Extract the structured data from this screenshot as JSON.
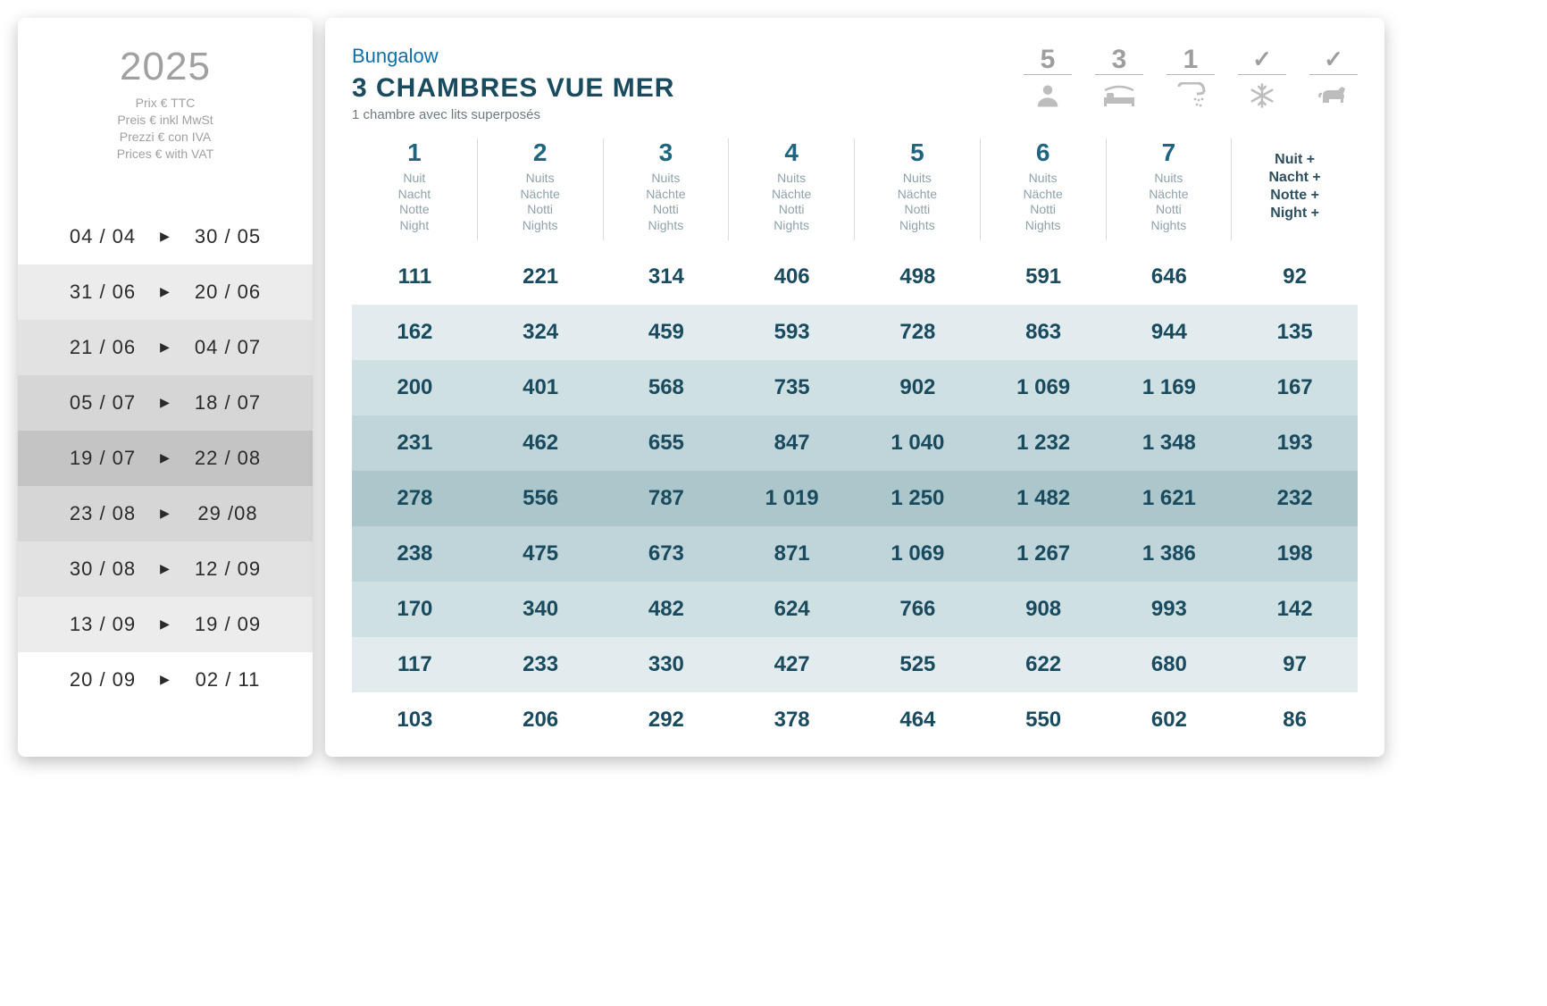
{
  "type": "table",
  "left": {
    "year": "2025",
    "price_notes": [
      "Prix € TTC",
      "Preis € inkl MwSt",
      "Prezzi € con IVA",
      "Prices € with VAT"
    ],
    "date_row_bg": [
      "#ffffff",
      "#ececec",
      "#e2e2e2",
      "#d6d6d6",
      "#c4c4c4",
      "#d6d6d6",
      "#e2e2e2",
      "#ececec",
      "#ffffff"
    ],
    "dates": [
      {
        "from": "04 / 04",
        "to": "30 / 05"
      },
      {
        "from": "31 / 06",
        "to": "20 / 06"
      },
      {
        "from": "21 / 06",
        "to": "04 / 07"
      },
      {
        "from": "05 / 07",
        "to": "18 / 07"
      },
      {
        "from": "19 / 07",
        "to": "22 / 08"
      },
      {
        "from": "23 / 08",
        "to": "29 /08"
      },
      {
        "from": "30 / 08",
        "to": "12 / 09"
      },
      {
        "from": "13 / 09",
        "to": "19 / 09"
      },
      {
        "from": "20 / 09",
        "to": "02 / 11"
      }
    ]
  },
  "header": {
    "category": "Bungalow",
    "title": "3 CHAMBRES VUE MER",
    "subtitle": "1 chambre avec lits superposés"
  },
  "amenities": [
    {
      "value": "5",
      "icon": "person"
    },
    {
      "value": "3",
      "icon": "bed"
    },
    {
      "value": "1",
      "icon": "shower"
    },
    {
      "value": "✓",
      "icon": "snowflake"
    },
    {
      "value": "✓",
      "icon": "dog"
    }
  ],
  "columns": [
    {
      "num": "1",
      "labels": [
        "Nuit",
        "Nacht",
        "Notte",
        "Night"
      ]
    },
    {
      "num": "2",
      "labels": [
        "Nuits",
        "Nächte",
        "Notti",
        "Nights"
      ]
    },
    {
      "num": "3",
      "labels": [
        "Nuits",
        "Nächte",
        "Notti",
        "Nights"
      ]
    },
    {
      "num": "4",
      "labels": [
        "Nuits",
        "Nächte",
        "Notti",
        "Nights"
      ]
    },
    {
      "num": "5",
      "labels": [
        "Nuits",
        "Nächte",
        "Notti",
        "Nights"
      ]
    },
    {
      "num": "6",
      "labels": [
        "Nuits",
        "Nächte",
        "Notti",
        "Nights"
      ]
    },
    {
      "num": "7",
      "labels": [
        "Nuits",
        "Nächte",
        "Notti",
        "Nights"
      ]
    }
  ],
  "extra_col": {
    "labels": [
      "Nuit +",
      "Nacht +",
      "Notte +",
      "Night +"
    ]
  },
  "price_row_bg": [
    "#ffffff",
    "#e2ecef",
    "#cfe0e3",
    "#bfd5d9",
    "#abc7cb",
    "#bfd5d9",
    "#cfe0e3",
    "#e2ecef",
    "#ffffff"
  ],
  "rows": [
    [
      "111",
      "221",
      "314",
      "406",
      "498",
      "591",
      "646",
      "92"
    ],
    [
      "162",
      "324",
      "459",
      "593",
      "728",
      "863",
      "944",
      "135"
    ],
    [
      "200",
      "401",
      "568",
      "735",
      "902",
      "1 069",
      "1 169",
      "167"
    ],
    [
      "231",
      "462",
      "655",
      "847",
      "1 040",
      "1 232",
      "1 348",
      "193"
    ],
    [
      "278",
      "556",
      "787",
      "1 019",
      "1 250",
      "1 482",
      "1 621",
      "232"
    ],
    [
      "238",
      "475",
      "673",
      "871",
      "1 069",
      "1 267",
      "1 386",
      "198"
    ],
    [
      "170",
      "340",
      "482",
      "624",
      "766",
      "908",
      "993",
      "142"
    ],
    [
      "117",
      "233",
      "330",
      "427",
      "525",
      "622",
      "680",
      "97"
    ],
    [
      "103",
      "206",
      "292",
      "378",
      "464",
      "550",
      "602",
      "86"
    ]
  ],
  "colors": {
    "title": "#194a5e",
    "category": "#0f6ea5",
    "header_num": "#1e667f",
    "muted": "#8fa2ab",
    "amenity_gray": "#9e9e9e"
  }
}
